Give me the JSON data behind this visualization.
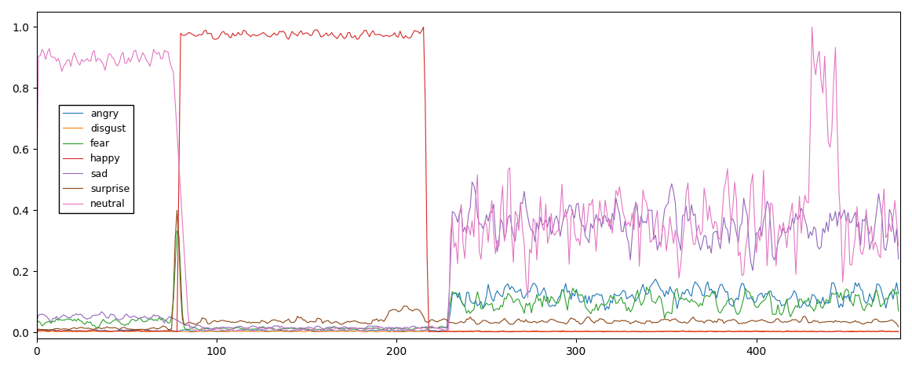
{
  "n_frames": 480,
  "emotions": [
    "angry",
    "disgust",
    "fear",
    "happy",
    "sad",
    "surprise",
    "neutral"
  ],
  "colors": [
    "#1f77b4",
    "#ff7f0e",
    "#2ca02c",
    "#d62728",
    "#9467bd",
    "#8b4513",
    "#e377c2"
  ],
  "legend_loc": "center left",
  "ylim": [
    0.0,
    1.05
  ],
  "xlim": [
    0,
    480
  ]
}
